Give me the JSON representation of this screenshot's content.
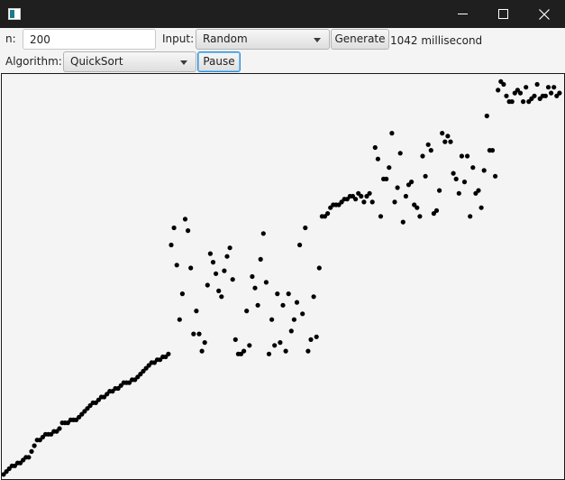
{
  "titlebar": {
    "title": "",
    "icons": {
      "app": "app-icon",
      "minimize": "minimize-icon",
      "maximize": "maximize-icon",
      "close": "close-icon"
    }
  },
  "controls": {
    "n_label": "n:",
    "n_value": "200",
    "input_label": "Input:",
    "input_selected": "Random",
    "generate_label": "Generate",
    "time_text": "1042 millisecond",
    "algorithm_label": "Algorithm:",
    "algorithm_selected": "QuickSort",
    "pause_label": "Pause"
  },
  "colors": {
    "titlebar": "#1f1f1f",
    "toolbar": "#f4f4f4",
    "canvas_background": "#f4f4f4",
    "point": "#000000",
    "focus": "#2a8fd6"
  },
  "chart_data": {
    "type": "scatter",
    "x": [
      0,
      1,
      2,
      3,
      4,
      5,
      6,
      7,
      8,
      9,
      10,
      11,
      12,
      13,
      14,
      15,
      16,
      17,
      18,
      19,
      20,
      21,
      22,
      23,
      24,
      25,
      26,
      27,
      28,
      29,
      30,
      31,
      32,
      33,
      34,
      35,
      36,
      37,
      38,
      39,
      40,
      41,
      42,
      43,
      44,
      45,
      46,
      47,
      48,
      49,
      50,
      51,
      52,
      53,
      54,
      55,
      56,
      57,
      58,
      59,
      60,
      61,
      62,
      63,
      64,
      65,
      66,
      67,
      68,
      69,
      70,
      71,
      72,
      73,
      74,
      75,
      76,
      77,
      78,
      79,
      80,
      81,
      82,
      83,
      84,
      85,
      86,
      87,
      88,
      89,
      90,
      91,
      92,
      93,
      94,
      95,
      96,
      97,
      98,
      99,
      100,
      101,
      102,
      103,
      104,
      105,
      106,
      107,
      108,
      109,
      110,
      111,
      112,
      113,
      114,
      115,
      116,
      117,
      118,
      119,
      120,
      121,
      122,
      123,
      124,
      125,
      126,
      127,
      128,
      129,
      130,
      131,
      132,
      133,
      134,
      135,
      136,
      137,
      138,
      139,
      140,
      141,
      142,
      143,
      144,
      145,
      146,
      147,
      148,
      149,
      150,
      151,
      152,
      153,
      154,
      155,
      156,
      157,
      158,
      159,
      160,
      161,
      162,
      163,
      164,
      165,
      166,
      167,
      168,
      169,
      170,
      171,
      172,
      173,
      174,
      175,
      176,
      177,
      178,
      179,
      180,
      181,
      182,
      183,
      184,
      185,
      186,
      187,
      188,
      189,
      190,
      191,
      192,
      193,
      194,
      195,
      196,
      197,
      198,
      199
    ],
    "y": [
      1,
      2,
      3,
      4,
      4,
      5,
      5,
      6,
      7,
      7,
      9,
      11,
      13,
      13,
      14,
      15,
      15,
      15,
      16,
      16,
      17,
      19,
      19,
      19,
      20,
      20,
      20,
      21,
      22,
      23,
      24,
      25,
      26,
      26,
      27,
      28,
      28,
      29,
      30,
      30,
      31,
      31,
      32,
      33,
      33,
      33,
      34,
      34,
      35,
      36,
      37,
      38,
      39,
      40,
      40,
      41,
      41,
      42,
      42,
      43,
      81,
      87,
      74,
      55,
      64,
      90,
      86,
      73,
      50,
      58,
      50,
      44,
      47,
      67,
      78,
      75,
      71,
      65,
      63,
      72,
      77,
      80,
      69,
      48,
      43,
      43,
      44,
      58,
      46,
      70,
      66,
      60,
      76,
      85,
      68,
      43,
      55,
      46,
      64,
      47,
      60,
      44,
      64,
      51,
      55,
      61,
      81,
      57,
      87,
      44,
      48,
      63,
      49,
      73,
      91,
      91,
      92,
      94,
      95,
      95,
      95,
      96,
      97,
      97,
      98,
      98,
      97,
      99,
      98,
      96,
      98,
      99,
      96,
      115,
      111,
      91,
      104,
      104,
      108,
      120,
      96,
      101,
      113,
      89,
      98,
      102,
      103,
      95,
      94,
      91,
      112,
      105,
      116,
      114,
      92,
      93,
      100,
      120,
      117,
      119,
      117,
      106,
      104,
      99,
      112,
      103,
      112,
      91,
      108,
      99,
      100,
      94,
      107,
      126,
      114,
      114,
      105,
      135,
      138,
      137,
      133,
      131,
      131,
      134,
      135,
      134,
      131,
      136,
      131,
      132,
      133,
      137,
      132,
      133,
      133,
      136,
      134,
      136,
      133,
      134
    ],
    "xlim": [
      0,
      200
    ],
    "ylim": [
      0,
      140
    ],
    "point_color": "#000000",
    "grid": false,
    "title": "",
    "xlabel": "",
    "ylabel": ""
  }
}
